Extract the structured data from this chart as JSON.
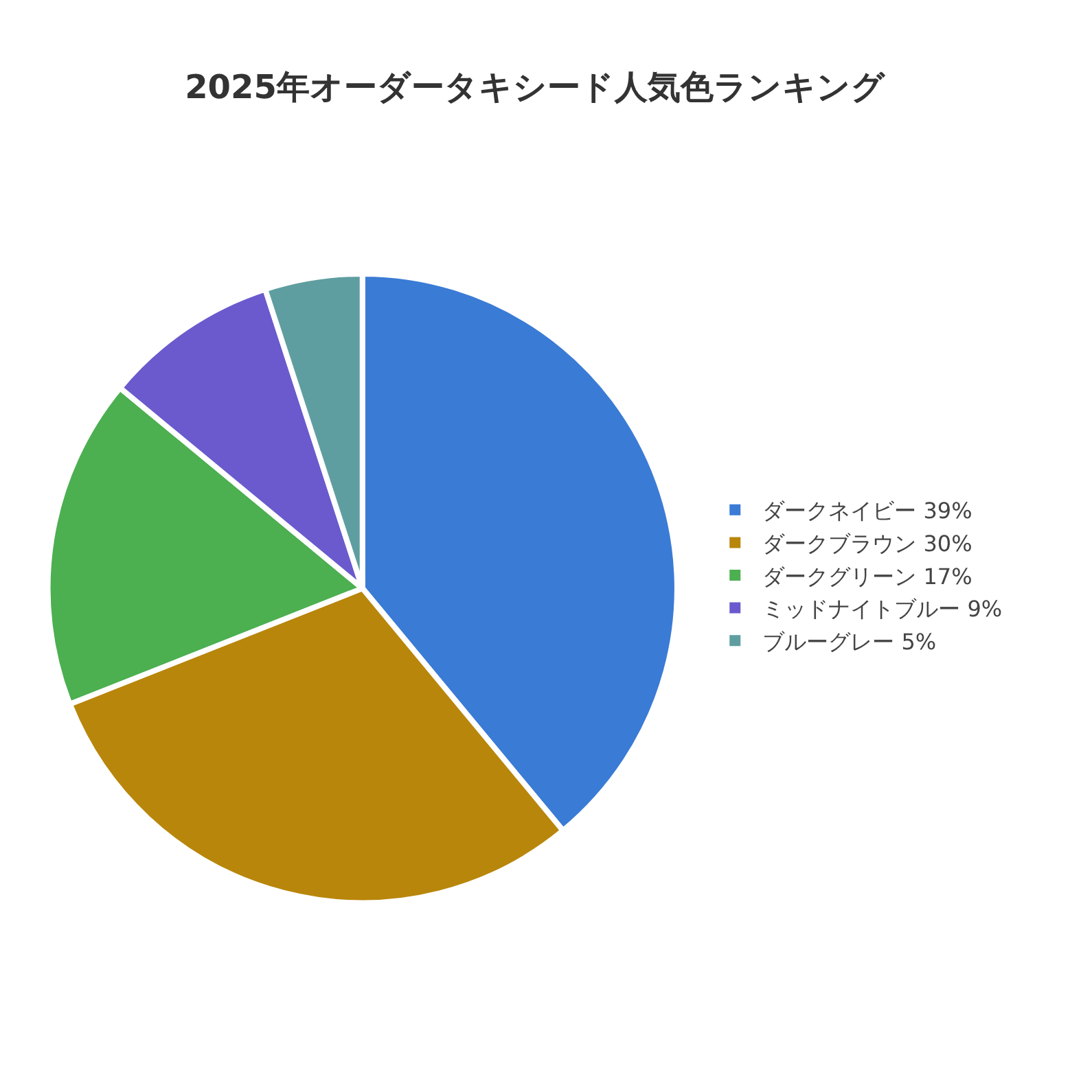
{
  "chart_data": {
    "type": "pie",
    "title": "2025年オーダータキシード人気色ランキング",
    "categories": [
      "ダークネイビー 39%",
      "ダークブラウン 30%",
      "ダークグリーン 17%",
      "ミッドナイトブルー 9%",
      "ブルーグレー 5%"
    ],
    "values": [
      39,
      30,
      17,
      9,
      5
    ],
    "colors": [
      "#3a7bd5",
      "#b8860b",
      "#4caf50",
      "#6a5acd",
      "#5f9ea0"
    ],
    "legend": "right"
  }
}
